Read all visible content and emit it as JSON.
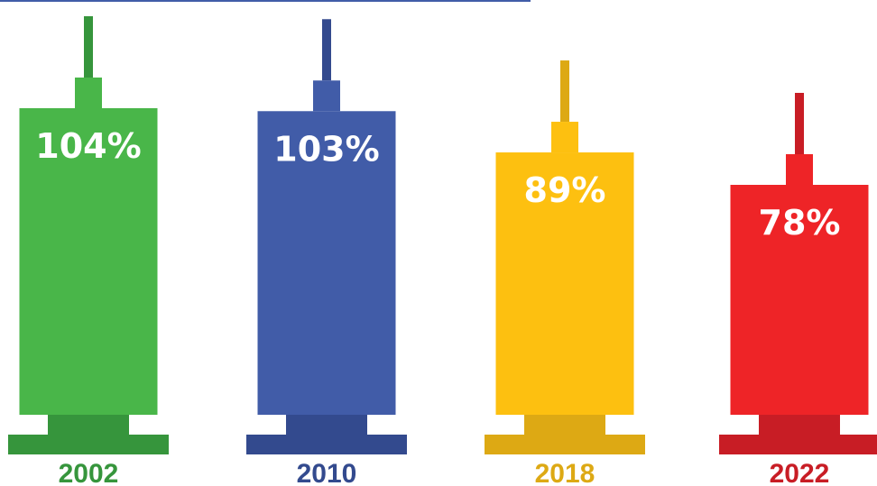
{
  "chart_data": {
    "type": "bar",
    "title": "",
    "xlabel": "",
    "ylabel": "",
    "categories": [
      "2002",
      "2010",
      "2018",
      "2022"
    ],
    "values": [
      104,
      103,
      89,
      78
    ],
    "value_labels": [
      "104%",
      "103%",
      "89%",
      "78%"
    ],
    "unit": "%",
    "ylim": [
      0,
      104
    ],
    "grid": false,
    "legend": "none",
    "mark_style": "syringe",
    "colors": [
      {
        "barrel": "#49b649",
        "accent": "#36953c"
      },
      {
        "barrel": "#415ca8",
        "accent": "#334a8e"
      },
      {
        "barrel": "#fdc010",
        "accent": "#dda914"
      },
      {
        "barrel": "#ee2427",
        "accent": "#c81d25"
      }
    ],
    "top_rule_color": "#415ca8"
  }
}
